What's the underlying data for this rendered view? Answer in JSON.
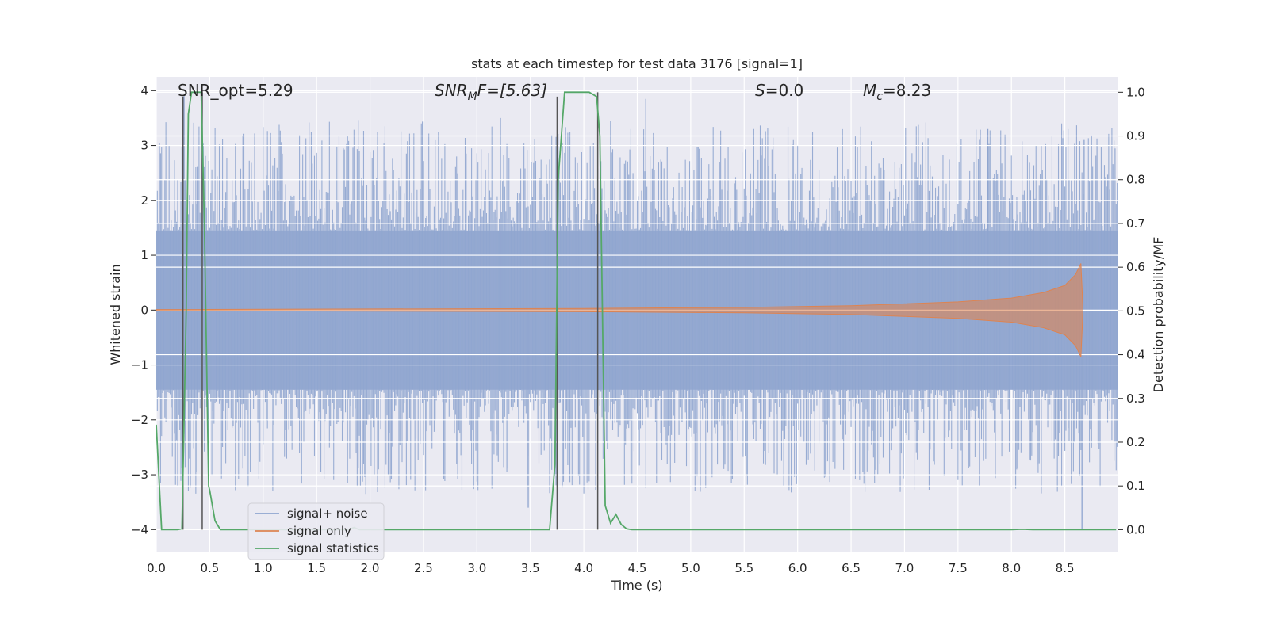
{
  "chart_data": {
    "type": "line",
    "title": "stats at each timestep for test data 3176 [signal=1]",
    "xlabel": "Time (s)",
    "ylabel": "Whitened strain",
    "y2label": "Detection probability/MF",
    "xlim": [
      0,
      9.0
    ],
    "ylim": [
      -4.4,
      4.25
    ],
    "y2lim": [
      -0.05,
      1.035
    ],
    "xticks": [
      0.0,
      0.5,
      1.0,
      1.5,
      2.0,
      2.5,
      3.0,
      3.5,
      4.0,
      4.5,
      5.0,
      5.5,
      6.0,
      6.5,
      7.0,
      7.5,
      8.0,
      8.5
    ],
    "xtick_labels": [
      "0.0",
      "0.5",
      "1.0",
      "1.5",
      "2.0",
      "2.5",
      "3.0",
      "3.5",
      "4.0",
      "4.5",
      "5.0",
      "5.5",
      "6.0",
      "6.5",
      "7.0",
      "7.5",
      "8.0",
      "8.5"
    ],
    "yticks": [
      4,
      3,
      2,
      1,
      0,
      -1,
      -2,
      -3,
      -4
    ],
    "ytick_labels": [
      "4",
      "3",
      "2",
      "1",
      "0",
      "−1",
      "−2",
      "−3",
      "−4"
    ],
    "y2ticks": [
      1.0,
      0.9,
      0.8,
      0.7,
      0.6,
      0.5,
      0.4,
      0.3,
      0.2,
      0.1,
      0.0
    ],
    "y2tick_labels": [
      "1.0",
      "0.9",
      "0.8",
      "0.7",
      "0.6",
      "0.5",
      "0.4",
      "0.3",
      "0.2",
      "0.1",
      "0.0"
    ],
    "grid": true,
    "legend": {
      "location": "lower-left",
      "entries": [
        "signal+ noise",
        "signal only",
        "signal statistics"
      ]
    },
    "annotations": {
      "snr_opt": "SNR_opt=5.29",
      "snr_mf_base": "SNR",
      "snr_mf_sub": "M",
      "snr_mf_rest": "F=[5.63]",
      "s_label": "S",
      "s_value": "=0.0",
      "mc_label": "M",
      "mc_sub": "c",
      "mc_value": "=8.23"
    },
    "series": [
      {
        "name": "signal+ noise",
        "axis": "left",
        "color": "#8fa5cf",
        "description": "dense noise trace, core amplitude ~1.5, peaks to ~3.8",
        "notable_peaks": [
          [
            0.26,
            3.9
          ],
          [
            0.43,
            4.0
          ],
          [
            3.22,
            3.5
          ],
          [
            4.58,
            3.85
          ],
          [
            7.78,
            3.3
          ],
          [
            8.68,
            3.1
          ],
          [
            8.66,
            -4.0
          ],
          [
            3.48,
            -3.6
          ]
        ]
      },
      {
        "name": "signal only",
        "axis": "left",
        "color": "#dd8452",
        "description": "chirp growing in amplitude toward merger",
        "envelope": [
          [
            0.0,
            0.01
          ],
          [
            4.0,
            0.03
          ],
          [
            5.5,
            0.05
          ],
          [
            6.5,
            0.08
          ],
          [
            7.5,
            0.15
          ],
          [
            8.0,
            0.22
          ],
          [
            8.3,
            0.32
          ],
          [
            8.5,
            0.45
          ],
          [
            8.6,
            0.65
          ],
          [
            8.65,
            0.85
          ],
          [
            8.67,
            0.0
          ]
        ]
      },
      {
        "name": "signal statistics",
        "axis": "right",
        "color": "#55a868",
        "x": [
          0.0,
          0.05,
          0.1,
          0.15,
          0.2,
          0.24,
          0.28,
          0.3,
          0.33,
          0.36,
          0.39,
          0.42,
          0.45,
          0.49,
          0.5,
          0.55,
          0.6,
          1.8,
          1.85,
          1.9,
          1.95,
          2.0,
          3.6,
          3.68,
          3.73,
          3.76,
          3.82,
          3.9,
          4.05,
          4.12,
          4.15,
          4.2,
          4.25,
          4.3,
          4.35,
          4.4,
          4.45,
          4.5,
          8.0,
          8.1,
          8.2,
          8.98
        ],
        "values": [
          0.24,
          0.0,
          0.0,
          0.0,
          0.0,
          0.002,
          0.5,
          0.95,
          1.0,
          1.0,
          1.0,
          1.0,
          0.7,
          0.1,
          0.09,
          0.02,
          0.0,
          0.0,
          0.005,
          0.0,
          0.0,
          0.0,
          0.0,
          0.0,
          0.15,
          0.8,
          1.0,
          1.0,
          1.0,
          0.99,
          0.9,
          0.055,
          0.015,
          0.035,
          0.012,
          0.002,
          0.0,
          0.0,
          0.0,
          0.001,
          0.0,
          0.0
        ]
      },
      {
        "name": "detection markers",
        "axis": "right",
        "color": "#555555",
        "description": "vertical dark lines marking detection window edges",
        "x": [
          0.25,
          0.43,
          3.75,
          4.13
        ],
        "tops": [
          0.99,
          1.0,
          0.99,
          1.0
        ]
      }
    ]
  }
}
